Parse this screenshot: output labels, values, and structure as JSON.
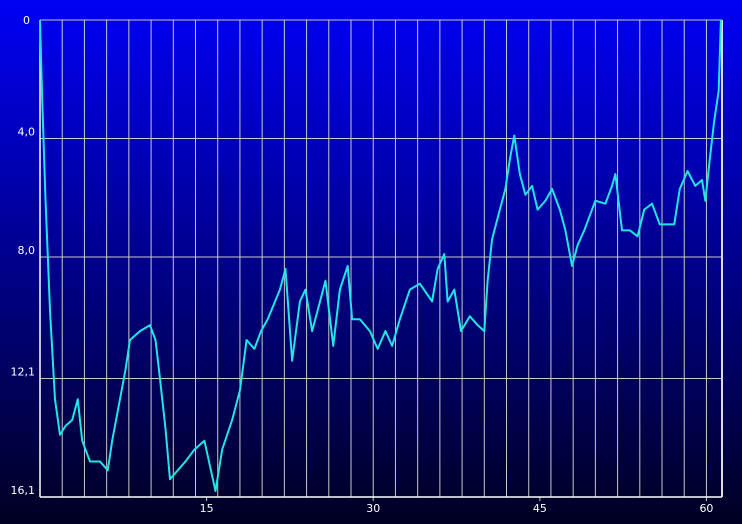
{
  "chart_data": {
    "type": "line",
    "x": [
      0,
      0.2,
      0.5,
      0.9,
      1.35,
      1.8,
      2.3,
      2.9,
      3.4,
      3.8,
      4.5,
      5.4,
      6.1,
      6.5,
      7.2,
      7.7,
      8.1,
      9.0,
      9.9,
      10.4,
      10.8,
      11.3,
      11.7,
      12.4,
      13.1,
      13.9,
      14.8,
      15.8,
      16.4,
      17.3,
      18.0,
      18.6,
      19.3,
      19.9,
      20.5,
      21.6,
      22.1,
      22.7,
      23.4,
      23.9,
      24.5,
      25.0,
      25.7,
      26.4,
      27.0,
      27.7,
      28.1,
      28.8,
      29.7,
      30.4,
      31.1,
      31.7,
      32.4,
      33.3,
      34.2,
      35.3,
      35.8,
      36.4,
      36.7,
      37.3,
      37.9,
      38.7,
      39.4,
      40.0,
      40.3,
      40.7,
      41.4,
      41.9,
      42.3,
      42.7,
      43.2,
      43.7,
      44.3,
      44.8,
      45.5,
      46.1,
      46.8,
      47.3,
      47.9,
      48.4,
      49.0,
      49.5,
      50.0,
      50.9,
      51.5,
      51.8,
      52.4,
      53.1,
      53.8,
      54.4,
      55.1,
      55.8,
      56.3,
      57.1,
      57.6,
      58.3,
      59.0,
      59.6,
      59.9,
      60.3,
      60.7,
      61.1,
      61.3
    ],
    "series": [
      {
        "color": "#22e6e6",
        "values": [
          0,
          2.7,
          6.1,
          9.8,
          12.8,
          14.0,
          13.7,
          13.5,
          12.8,
          14.2,
          14.9,
          14.9,
          15.2,
          14.2,
          12.8,
          11.8,
          10.8,
          10.5,
          10.3,
          10.8,
          12.1,
          13.8,
          15.5,
          15.2,
          14.9,
          14.5,
          14.2,
          15.9,
          14.5,
          13.5,
          12.5,
          10.8,
          11.1,
          10.5,
          10.1,
          9.1,
          8.4,
          11.5,
          9.5,
          9.1,
          10.5,
          9.8,
          8.8,
          11.0,
          9.1,
          8.3,
          10.1,
          10.1,
          10.5,
          11.1,
          10.5,
          11.0,
          10.1,
          9.1,
          8.9,
          9.5,
          8.4,
          7.9,
          9.5,
          9.1,
          10.5,
          10.0,
          10.3,
          10.5,
          8.8,
          7.4,
          6.4,
          5.7,
          4.7,
          3.9,
          5.2,
          5.9,
          5.6,
          6.4,
          6.1,
          5.7,
          6.4,
          7.1,
          8.3,
          7.6,
          7.1,
          6.6,
          6.1,
          6.2,
          5.6,
          5.2,
          7.1,
          7.1,
          7.3,
          6.4,
          6.2,
          6.9,
          6.9,
          6.9,
          5.7,
          5.1,
          5.6,
          5.4,
          6.1,
          4.7,
          3.4,
          2.4,
          0
        ]
      }
    ],
    "xlim": [
      0,
      61.4
    ],
    "xticks": [
      15,
      30,
      45,
      60
    ],
    "x_grid_step": 2,
    "ylim": [
      0,
      16.1
    ],
    "y_inverted": true,
    "yticks": [
      0,
      {
        "value": 4.0,
        "label": "4,0"
      },
      {
        "value": 8.0,
        "label": "8,0"
      },
      {
        "value": 12.1,
        "label": "12,1"
      },
      {
        "value": 16.1,
        "label": "16,1"
      }
    ],
    "grid": true
  }
}
